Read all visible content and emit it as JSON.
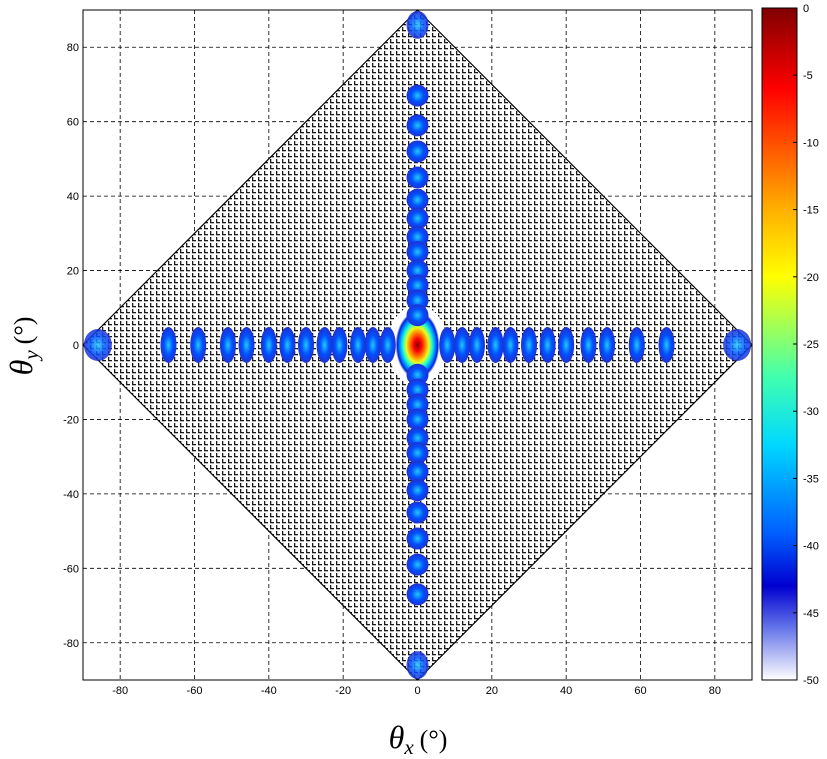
{
  "chart_data": {
    "type": "heatmap",
    "title": "",
    "xlabel_symbol": "θ",
    "xlabel_sub": "x",
    "xlabel_unit": "(°)",
    "ylabel_symbol": "θ",
    "ylabel_sub": "y",
    "ylabel_unit": "(°)",
    "xlim": [
      -90,
      90
    ],
    "ylim": [
      -90,
      90
    ],
    "xticks": [
      -80,
      -60,
      -40,
      -20,
      0,
      20,
      40,
      60,
      80
    ],
    "yticks": [
      80,
      60,
      40,
      20,
      0,
      -20,
      -40,
      -60,
      -80
    ],
    "grid": true,
    "colorbar": {
      "range": [
        -50,
        0
      ],
      "ticks": [
        0,
        -5,
        -10,
        -15,
        -20,
        -25,
        -30,
        -35,
        -40,
        -45,
        -50
      ],
      "colormap": "jet",
      "placement": "right"
    },
    "visible_region": {
      "shape": "diamond",
      "vertices": [
        [
          0,
          90
        ],
        [
          90,
          0
        ],
        [
          0,
          -90
        ],
        [
          -90,
          0
        ]
      ]
    },
    "main_lobe": {
      "x": 0,
      "y": 0,
      "level": 0
    },
    "sidelobes_x_axis": [
      -86,
      -67,
      -59,
      -51,
      -46,
      -40,
      -35,
      -30,
      -25,
      -21,
      -16,
      -12,
      -8,
      8,
      12,
      16,
      21,
      25,
      30,
      35,
      40,
      46,
      51,
      59,
      67,
      86
    ],
    "sidelobes_y_axis": [
      86,
      67,
      59,
      52,
      45,
      39,
      34,
      29,
      25,
      20,
      16,
      12,
      8,
      -8,
      -12,
      -16,
      -20,
      -25,
      -29,
      -34,
      -39,
      -45,
      -52,
      -59,
      -67,
      -86
    ],
    "sidelobe_level": -38
  }
}
